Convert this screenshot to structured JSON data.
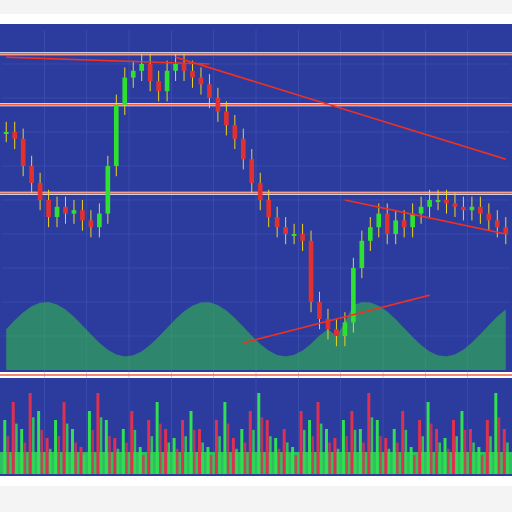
{
  "header": {
    "title": "",
    "readouts": [
      "",
      "",
      ""
    ]
  },
  "colors": {
    "background": "#2c3c9e",
    "grid": "#5a6ad0",
    "rule_line": "#f06040",
    "candle_up": "#30e030",
    "candle_down": "#e03030",
    "wick": "#f0d020",
    "volume_green": "#30e050",
    "volume_red": "#e03050",
    "trend_line": "#f03020",
    "axis_text": "#2a3a8a"
  },
  "chart_data": {
    "type": "candlestick",
    "title": "",
    "xlabel": "",
    "ylabel": "",
    "x_tick_labels": [
      "",
      "",
      "",
      ""
    ],
    "horizontal_levels": [
      0.93,
      0.78,
      0.52
    ],
    "price_series": [
      0.7,
      0.68,
      0.6,
      0.55,
      0.5,
      0.45,
      0.48,
      0.46,
      0.47,
      0.44,
      0.42,
      0.46,
      0.6,
      0.78,
      0.86,
      0.88,
      0.9,
      0.85,
      0.82,
      0.88,
      0.9,
      0.88,
      0.86,
      0.84,
      0.8,
      0.76,
      0.72,
      0.68,
      0.62,
      0.55,
      0.5,
      0.45,
      0.42,
      0.4,
      0.4,
      0.38,
      0.2,
      0.15,
      0.12,
      0.1,
      0.14,
      0.3,
      0.38,
      0.42,
      0.46,
      0.4,
      0.44,
      0.42,
      0.46,
      0.48,
      0.5,
      0.5,
      0.49,
      0.48,
      0.47,
      0.48,
      0.46,
      0.44,
      0.42,
      0.4
    ],
    "trend_lines": [
      {
        "from": [
          0,
          0.92
        ],
        "to": [
          24,
          0.9
        ]
      },
      {
        "from": [
          20,
          0.92
        ],
        "to": [
          59,
          0.62
        ]
      },
      {
        "from": [
          28,
          0.08
        ],
        "to": [
          50,
          0.22
        ]
      },
      {
        "from": [
          40,
          0.5
        ],
        "to": [
          59,
          0.4
        ]
      }
    ],
    "volume": [
      0.6,
      0.8,
      0.5,
      0.9,
      0.7,
      0.4,
      0.6,
      0.8,
      0.5,
      0.3,
      0.7,
      0.9,
      0.6,
      0.4,
      0.5,
      0.7,
      0.3,
      0.6,
      0.8,
      0.5,
      0.4,
      0.6,
      0.7,
      0.5,
      0.3,
      0.6,
      0.8,
      0.4,
      0.5,
      0.7,
      0.9,
      0.6,
      0.4,
      0.5,
      0.3,
      0.7,
      0.6,
      0.8,
      0.5,
      0.4,
      0.6,
      0.7,
      0.5,
      0.9,
      0.6,
      0.4,
      0.5,
      0.7,
      0.3,
      0.6,
      0.8,
      0.5,
      0.4,
      0.6,
      0.7,
      0.5,
      0.3,
      0.6,
      0.9,
      0.5
    ],
    "grid": true
  }
}
